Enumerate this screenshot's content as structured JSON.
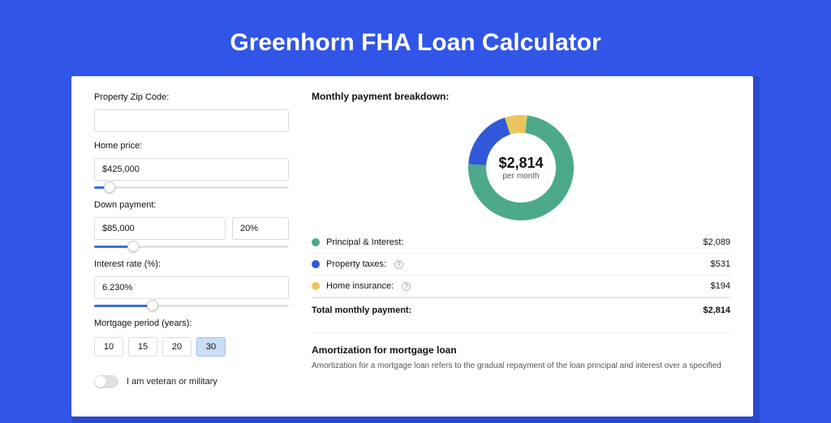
{
  "page": {
    "title": "Greenhorn FHA Loan Calculator",
    "bg_color": "#3155e6",
    "shadow_color": "#2948cc"
  },
  "form": {
    "zip": {
      "label": "Property Zip Code:",
      "value": ""
    },
    "home_price": {
      "label": "Home price:",
      "value": "$425,000",
      "slider_pct": 8
    },
    "down_payment": {
      "label": "Down payment:",
      "value": "$85,000",
      "pct_value": "20%",
      "slider_pct": 20
    },
    "interest_rate": {
      "label": "Interest rate (%):",
      "value": "6.230%",
      "slider_pct": 30
    },
    "mortgage_period": {
      "label": "Mortgage period (years):",
      "options": [
        "10",
        "15",
        "20",
        "30"
      ],
      "active": "30"
    },
    "veteran": {
      "label": "I am veteran or military",
      "checked": false
    }
  },
  "breakdown": {
    "title": "Monthly payment breakdown:",
    "center_amount": "$2,814",
    "center_sub": "per month",
    "items": [
      {
        "label": "Principal & Interest:",
        "value": "$2,089",
        "color": "#4ca98a",
        "info": false
      },
      {
        "label": "Property taxes:",
        "value": "$531",
        "color": "#3058d8",
        "info": true
      },
      {
        "label": "Home insurance:",
        "value": "$194",
        "color": "#e9c65d",
        "info": true
      }
    ],
    "total": {
      "label": "Total monthly payment:",
      "value": "$2,814"
    },
    "donut": {
      "segments": [
        {
          "color": "#e9c65d",
          "fraction": 0.069
        },
        {
          "color": "#4ca98a",
          "fraction": 0.742
        },
        {
          "color": "#3058d8",
          "fraction": 0.189
        }
      ],
      "start_angle": -18,
      "ring_width": 22,
      "radius": 65
    }
  },
  "amortization": {
    "title": "Amortization for mortgage loan",
    "text": "Amortization for a mortgage loan refers to the gradual repayment of the loan principal and interest over a specified"
  },
  "colors": {
    "input_border": "#d9d9d9",
    "slider_fill": "#3b6fe2"
  }
}
